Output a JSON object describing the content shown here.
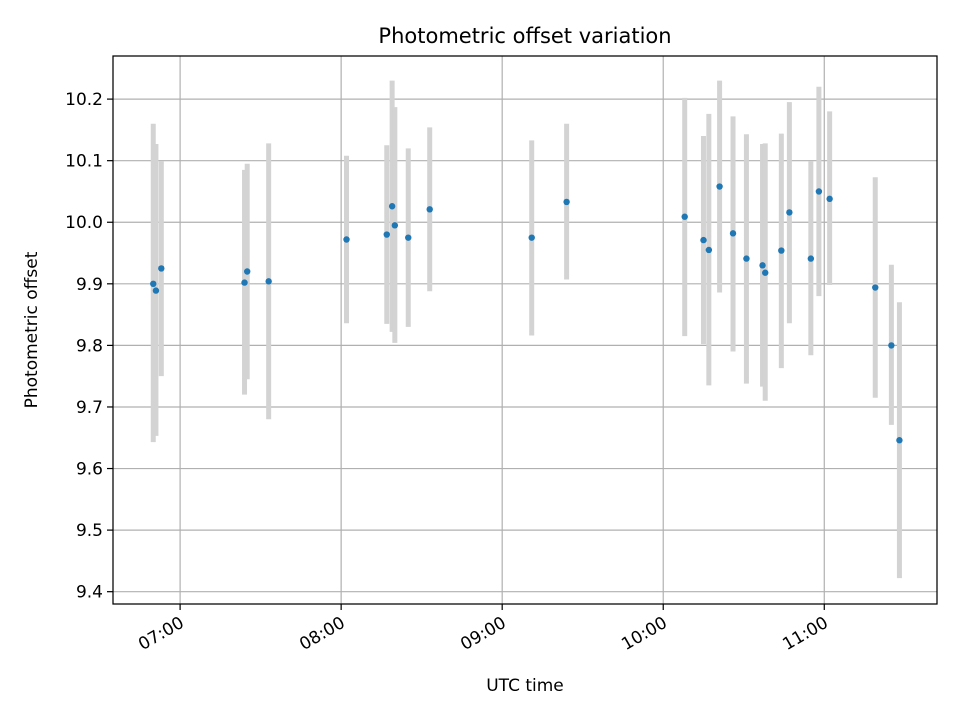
{
  "chart_data": {
    "type": "scatter",
    "title": "Photometric offset variation",
    "xlabel": "UTC time",
    "ylabel": "Photometric offset",
    "x_ticks": [
      "07:00",
      "08:00",
      "09:00",
      "10:00",
      "11:00"
    ],
    "y_ticks": [
      "9.4",
      "9.5",
      "9.6",
      "9.7",
      "9.8",
      "9.9",
      "10.0",
      "10.1",
      "10.2"
    ],
    "xlim": [
      "06:35",
      "11:42"
    ],
    "ylim": [
      9.38,
      10.27
    ],
    "grid": true,
    "colors": {
      "points": "#1f77b4",
      "error_bars": "#d3d3d3",
      "grid": "#b0b0b0"
    },
    "series": [
      {
        "points": [
          {
            "x": "06:50",
            "y": 9.9,
            "ylo": 9.643,
            "yhi": 10.16
          },
          {
            "x": "06:51",
            "y": 9.889,
            "ylo": 9.653,
            "yhi": 10.127
          },
          {
            "x": "06:53",
            "y": 9.925,
            "ylo": 9.75,
            "yhi": 10.099
          },
          {
            "x": "07:24",
            "y": 9.902,
            "ylo": 9.72,
            "yhi": 10.085
          },
          {
            "x": "07:25",
            "y": 9.92,
            "ylo": 9.745,
            "yhi": 10.095
          },
          {
            "x": "07:33",
            "y": 9.904,
            "ylo": 9.68,
            "yhi": 10.128
          },
          {
            "x": "08:02",
            "y": 9.972,
            "ylo": 9.836,
            "yhi": 10.108
          },
          {
            "x": "08:17",
            "y": 9.98,
            "ylo": 9.835,
            "yhi": 10.125
          },
          {
            "x": "08:19",
            "y": 10.026,
            "ylo": 9.822,
            "yhi": 10.23
          },
          {
            "x": "08:20",
            "y": 9.995,
            "ylo": 9.804,
            "yhi": 10.187
          },
          {
            "x": "08:25",
            "y": 9.975,
            "ylo": 9.83,
            "yhi": 10.12
          },
          {
            "x": "08:33",
            "y": 10.021,
            "ylo": 9.888,
            "yhi": 10.154
          },
          {
            "x": "09:11",
            "y": 9.975,
            "ylo": 9.816,
            "yhi": 10.133
          },
          {
            "x": "09:24",
            "y": 10.033,
            "ylo": 9.907,
            "yhi": 10.16
          },
          {
            "x": "10:08",
            "y": 10.009,
            "ylo": 9.815,
            "yhi": 10.202
          },
          {
            "x": "10:15",
            "y": 9.971,
            "ylo": 9.802,
            "yhi": 10.14
          },
          {
            "x": "10:17",
            "y": 9.955,
            "ylo": 9.735,
            "yhi": 10.176
          },
          {
            "x": "10:21",
            "y": 10.058,
            "ylo": 9.886,
            "yhi": 10.23
          },
          {
            "x": "10:26",
            "y": 9.982,
            "ylo": 9.79,
            "yhi": 10.172
          },
          {
            "x": "10:31",
            "y": 9.941,
            "ylo": 9.738,
            "yhi": 10.143
          },
          {
            "x": "10:37",
            "y": 9.93,
            "ylo": 9.733,
            "yhi": 10.127
          },
          {
            "x": "10:38",
            "y": 9.918,
            "ylo": 9.71,
            "yhi": 10.128
          },
          {
            "x": "10:44",
            "y": 9.954,
            "ylo": 9.763,
            "yhi": 10.144
          },
          {
            "x": "10:47",
            "y": 10.016,
            "ylo": 9.836,
            "yhi": 10.195
          },
          {
            "x": "10:55",
            "y": 9.941,
            "ylo": 9.784,
            "yhi": 10.099
          },
          {
            "x": "10:58",
            "y": 10.05,
            "ylo": 9.88,
            "yhi": 10.22
          },
          {
            "x": "11:02",
            "y": 10.038,
            "ylo": 9.898,
            "yhi": 10.18
          },
          {
            "x": "11:19",
            "y": 9.894,
            "ylo": 9.715,
            "yhi": 10.073
          },
          {
            "x": "11:25",
            "y": 9.8,
            "ylo": 9.671,
            "yhi": 9.931
          },
          {
            "x": "11:28",
            "y": 9.646,
            "ylo": 9.422,
            "yhi": 9.87
          }
        ]
      }
    ]
  }
}
